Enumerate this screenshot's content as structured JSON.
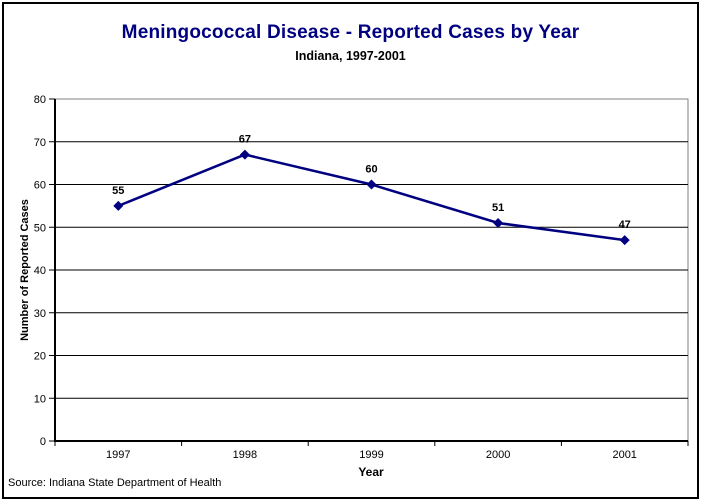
{
  "page": {
    "source_note": "Source: Indiana State Department of Health"
  },
  "chart_data": {
    "type": "line",
    "title": "Meningococcal Disease - Reported Cases by Year",
    "subtitle": "Indiana, 1997-2001",
    "xlabel": "Year",
    "ylabel": "Number of Reported Cases",
    "categories": [
      "1997",
      "1998",
      "1999",
      "2000",
      "2001"
    ],
    "series": [
      {
        "name": "Reported Cases",
        "values": [
          55,
          67,
          60,
          51,
          47
        ],
        "marker": "diamond"
      }
    ],
    "data_labels": [
      55,
      67,
      60,
      51,
      47
    ],
    "ylim": [
      0,
      80
    ],
    "y_ticks": [
      0,
      10,
      20,
      30,
      40,
      50,
      60,
      70,
      80
    ],
    "grid": "horizontal",
    "legend": "none",
    "colors": {
      "title": "#000080",
      "line": "#000080",
      "marker": "#000080",
      "gridline": "#000000",
      "axis": "#000000",
      "plot_border": "#808080",
      "text": "#000000",
      "background": "#ffffff"
    }
  }
}
